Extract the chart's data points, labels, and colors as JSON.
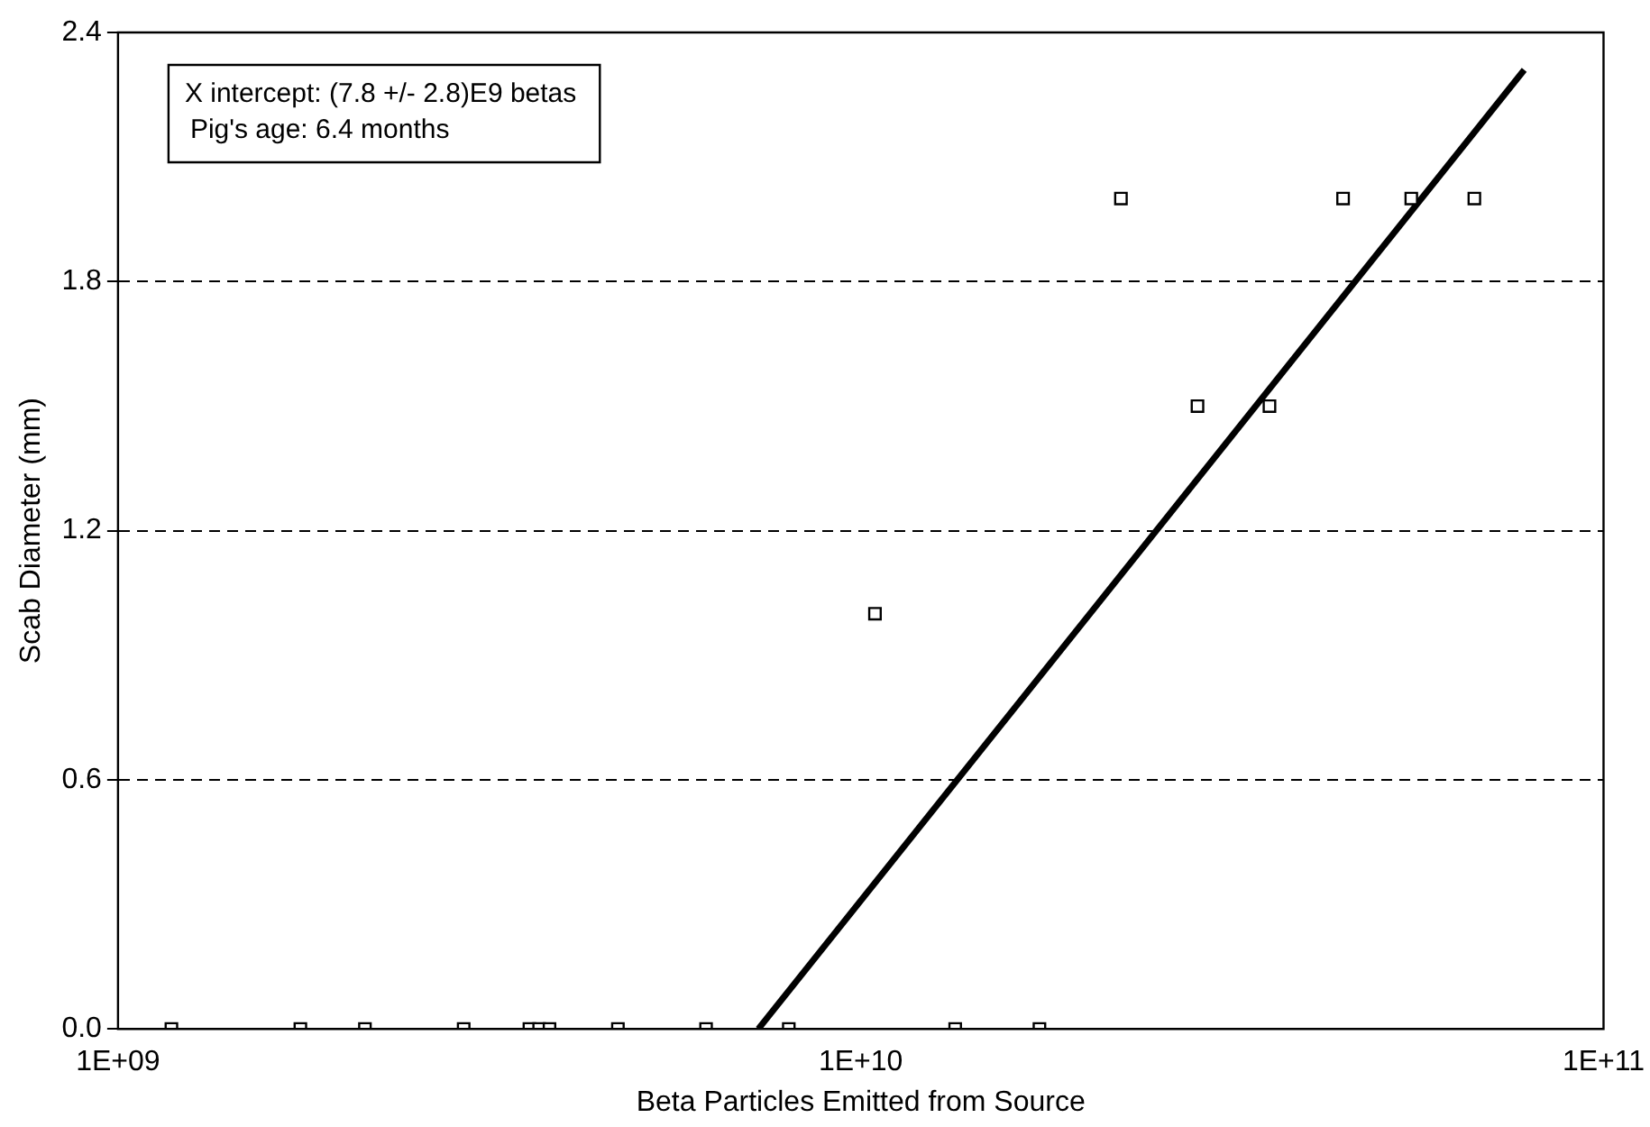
{
  "chart_data": {
    "type": "scatter",
    "xlabel": "Beta Particles Emitted from Source",
    "ylabel": "Scab Diameter (mm)",
    "annotations": [
      "X intercept: (7.8 +/- 2.8)E9 betas",
      "Pig's age: 6.4 months"
    ],
    "log": "x",
    "xlim": [
      1000000000.0,
      100000000000.0
    ],
    "xticks": [
      {
        "value": 1000000000.0,
        "label": "1E+09"
      },
      {
        "value": 10000000000.0,
        "label": "1E+10"
      },
      {
        "value": 100000000000.0,
        "label": "1E+11"
      }
    ],
    "ylim": [
      0,
      2.4
    ],
    "yticks": [
      {
        "value": 0,
        "label": "0.0"
      },
      0.6,
      1.2,
      1.8,
      2.4
    ],
    "grid": "y",
    "legend": false,
    "series": [
      {
        "color": "#000000",
        "marker": "square",
        "x": [
          1180000000.0,
          1760000000.0,
          2150000000.0,
          2920000000.0,
          3580000000.0,
          3690000000.0,
          3810000000.0,
          4710000000.0,
          6190000000.0,
          8000000000.0,
          13400000000.0,
          17400000000.0,
          10450000000.0,
          22400000000.0,
          28400000000.0,
          35500000000.0,
          44600000000.0,
          55100000000.0,
          67000000000.0
        ],
        "values": [
          0,
          0,
          0,
          0,
          0,
          0,
          0,
          0,
          0,
          0,
          0,
          0,
          1.0,
          2.0,
          1.5,
          1.5,
          2.0,
          2.0,
          2.0
        ]
      },
      {
        "type": "line",
        "color": "#000000",
        "marker": "none",
        "line_style": "solid",
        "x": [
          7280000000.0,
          78200000000.0
        ],
        "values": [
          0,
          2.31
        ]
      }
    ]
  }
}
